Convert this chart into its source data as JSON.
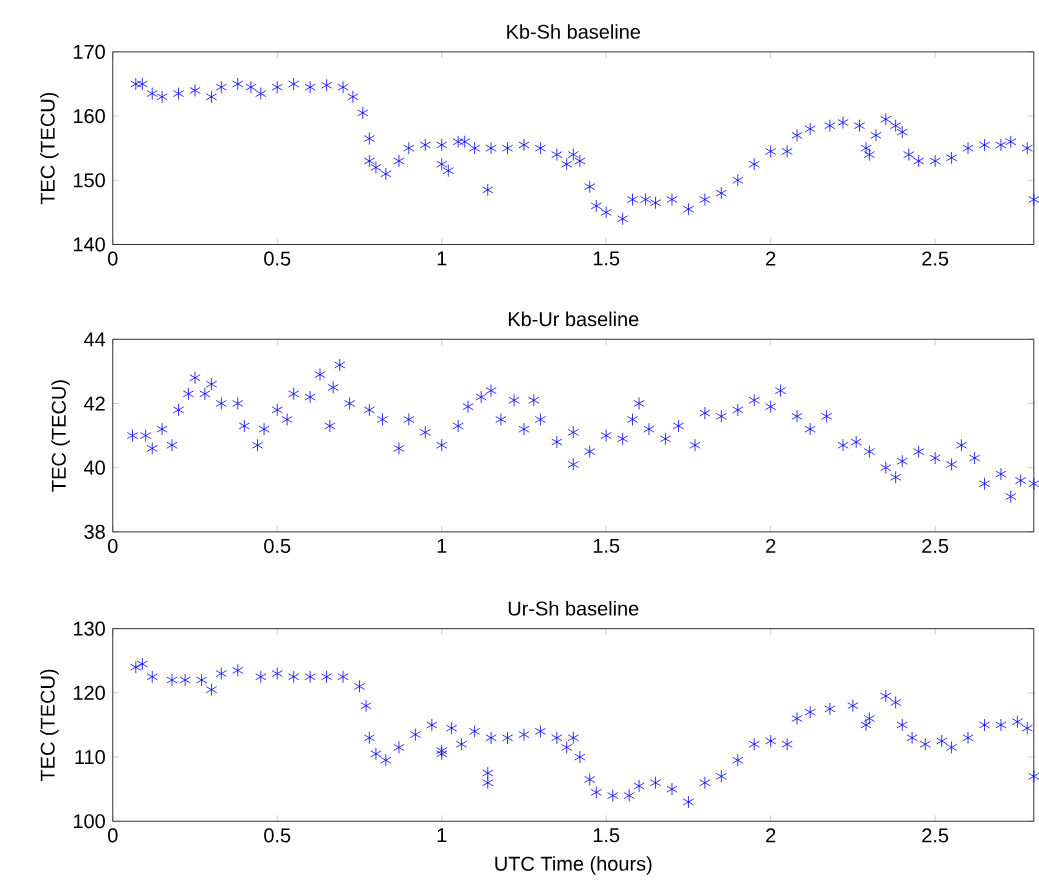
{
  "chart_data": [
    {
      "type": "scatter",
      "title": "Kb-Sh baseline",
      "ylabel": "TEC (TECU)",
      "color": "#0000ff",
      "marker": "cross",
      "xlim": [
        0,
        2.8
      ],
      "xticks": [
        0,
        0.5,
        1,
        1.5,
        2,
        2.5
      ],
      "ylim": [
        140,
        170
      ],
      "yticks": [
        140,
        150,
        160,
        170
      ],
      "x": [
        0.07,
        0.09,
        0.12,
        0.15,
        0.2,
        0.25,
        0.3,
        0.33,
        0.38,
        0.42,
        0.45,
        0.5,
        0.55,
        0.6,
        0.65,
        0.7,
        0.73,
        0.76,
        0.78,
        0.78,
        0.8,
        0.83,
        0.87,
        0.9,
        0.95,
        1.0,
        1.0,
        1.02,
        1.05,
        1.07,
        1.1,
        1.14,
        1.15,
        1.2,
        1.25,
        1.3,
        1.35,
        1.38,
        1.4,
        1.42,
        1.45,
        1.47,
        1.5,
        1.55,
        1.58,
        1.62,
        1.65,
        1.7,
        1.75,
        1.8,
        1.85,
        1.9,
        1.95,
        2.0,
        2.05,
        2.08,
        2.12,
        2.18,
        2.22,
        2.27,
        2.29,
        2.3,
        2.32,
        2.35,
        2.38,
        2.4,
        2.42,
        2.45,
        2.5,
        2.55,
        2.6,
        2.65,
        2.7,
        2.73,
        2.78,
        2.8
      ],
      "values": [
        165,
        165,
        163.5,
        163,
        163.5,
        164,
        163,
        164.5,
        165,
        164.5,
        163.5,
        164.5,
        165,
        164.5,
        164.8,
        164.5,
        163,
        160.5,
        156.5,
        153,
        152,
        151,
        153,
        155,
        155.5,
        155.5,
        152.5,
        151.5,
        156,
        156,
        155,
        148.5,
        155,
        155,
        155.5,
        155,
        154,
        152.5,
        154,
        153,
        149,
        146,
        145,
        144,
        147,
        147,
        146.5,
        147,
        145.5,
        147,
        148,
        150,
        152.5,
        154.5,
        154.5,
        157,
        158,
        158.5,
        159,
        158.5,
        155,
        154,
        157,
        159.5,
        158.5,
        157.5,
        154,
        153,
        153,
        153.5,
        155,
        155.5,
        155.5,
        156,
        155,
        147
      ]
    },
    {
      "type": "scatter",
      "title": "Kb-Ur baseline",
      "ylabel": "TEC (TECU)",
      "color": "#0000ff",
      "marker": "cross",
      "xlim": [
        0,
        2.8
      ],
      "xticks": [
        0,
        0.5,
        1,
        1.5,
        2,
        2.5
      ],
      "ylim": [
        38,
        44
      ],
      "yticks": [
        38,
        40,
        42,
        44
      ],
      "x": [
        0.06,
        0.1,
        0.12,
        0.15,
        0.18,
        0.2,
        0.23,
        0.25,
        0.28,
        0.3,
        0.33,
        0.38,
        0.4,
        0.44,
        0.46,
        0.5,
        0.53,
        0.55,
        0.6,
        0.63,
        0.66,
        0.67,
        0.69,
        0.72,
        0.78,
        0.82,
        0.87,
        0.9,
        0.95,
        1.0,
        1.05,
        1.08,
        1.12,
        1.15,
        1.18,
        1.22,
        1.25,
        1.28,
        1.3,
        1.35,
        1.4,
        1.4,
        1.45,
        1.5,
        1.55,
        1.58,
        1.6,
        1.63,
        1.68,
        1.72,
        1.77,
        1.8,
        1.85,
        1.9,
        1.95,
        2.0,
        2.03,
        2.08,
        2.12,
        2.17,
        2.22,
        2.26,
        2.3,
        2.35,
        2.38,
        2.4,
        2.45,
        2.5,
        2.55,
        2.58,
        2.62,
        2.65,
        2.7,
        2.73,
        2.76,
        2.8
      ],
      "values": [
        41,
        41,
        40.6,
        41.2,
        40.7,
        41.8,
        42.3,
        42.8,
        42.3,
        42.6,
        42,
        42,
        41.3,
        40.7,
        41.2,
        41.8,
        41.5,
        42.3,
        42.2,
        42.9,
        41.3,
        42.5,
        43.2,
        42,
        41.8,
        41.5,
        40.6,
        41.5,
        41.1,
        40.7,
        41.3,
        41.9,
        42.2,
        42.4,
        41.5,
        42.1,
        41.2,
        42.1,
        41.5,
        40.8,
        41.1,
        40.1,
        40.5,
        41,
        40.9,
        41.5,
        42,
        41.2,
        40.9,
        41.3,
        40.7,
        41.7,
        41.6,
        41.8,
        42.1,
        41.9,
        42.4,
        41.6,
        41.2,
        41.6,
        40.7,
        40.8,
        40.5,
        40,
        39.7,
        40.2,
        40.5,
        40.3,
        40.1,
        40.7,
        40.3,
        39.5,
        39.8,
        39.1,
        39.6,
        39.5
      ]
    },
    {
      "type": "scatter",
      "title": "Ur-Sh baseline",
      "ylabel": "TEC (TECU)",
      "xlabel": "UTC Time (hours)",
      "color": "#0000ff",
      "marker": "cross",
      "xlim": [
        0,
        2.8
      ],
      "xticks": [
        0,
        0.5,
        1,
        1.5,
        2,
        2.5
      ],
      "ylim": [
        100,
        130
      ],
      "yticks": [
        100,
        110,
        120,
        130
      ],
      "x": [
        0.07,
        0.09,
        0.12,
        0.18,
        0.22,
        0.27,
        0.3,
        0.33,
        0.38,
        0.45,
        0.5,
        0.55,
        0.6,
        0.65,
        0.7,
        0.75,
        0.77,
        0.78,
        0.8,
        0.83,
        0.87,
        0.92,
        0.97,
        1.0,
        1.0,
        1.03,
        1.06,
        1.1,
        1.14,
        1.14,
        1.15,
        1.2,
        1.25,
        1.3,
        1.35,
        1.38,
        1.4,
        1.42,
        1.45,
        1.47,
        1.52,
        1.57,
        1.6,
        1.65,
        1.7,
        1.75,
        1.8,
        1.85,
        1.9,
        1.95,
        2.0,
        2.05,
        2.08,
        2.12,
        2.18,
        2.25,
        2.29,
        2.3,
        2.35,
        2.38,
        2.4,
        2.43,
        2.47,
        2.52,
        2.55,
        2.6,
        2.65,
        2.7,
        2.75,
        2.78,
        2.8
      ],
      "values": [
        124,
        124.5,
        122.5,
        122,
        122,
        122,
        120.5,
        123,
        123.5,
        122.5,
        123,
        122.5,
        122.5,
        122.5,
        122.5,
        121,
        118,
        113,
        110.5,
        109.5,
        111.5,
        113.5,
        115,
        111,
        110.5,
        114.5,
        112,
        114,
        106,
        107.5,
        113,
        113,
        113.5,
        114,
        113,
        111.5,
        113,
        110,
        106.5,
        104.5,
        104,
        104,
        105.5,
        106,
        105,
        103,
        106,
        107,
        109.5,
        112,
        112.5,
        112,
        116,
        117,
        117.5,
        118,
        115,
        116,
        119.5,
        118.5,
        115,
        113,
        112,
        112.5,
        111.5,
        113,
        115,
        115,
        115.5,
        114.5,
        107
      ]
    }
  ]
}
